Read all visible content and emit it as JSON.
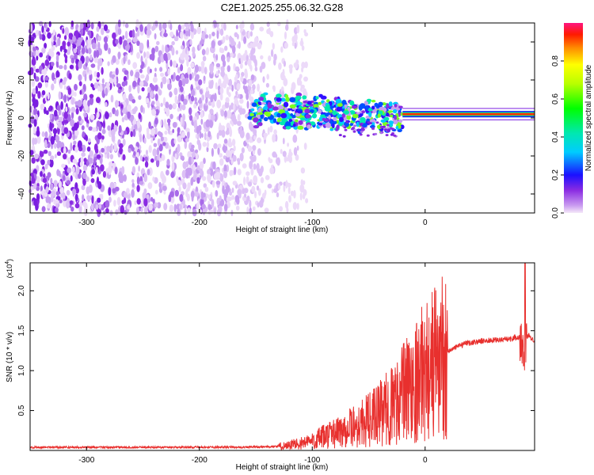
{
  "figure": {
    "title": "C2E1.2025.255.06.32.G28"
  },
  "chart_data": [
    {
      "type": "heatmap",
      "title": "C2E1.2025.255.06.32.G28",
      "xlabel": "Height of straight line (km)",
      "ylabel": "Frequency (Hz)",
      "xlim": [
        -350,
        97
      ],
      "ylim": [
        -50,
        50
      ],
      "x_ticks": [
        -300,
        -200,
        -100,
        0
      ],
      "y_ticks": [
        -40,
        -20,
        0,
        20,
        40
      ],
      "colorbar": {
        "label": "Normalized spectral amplitude",
        "range": [
          0,
          1
        ],
        "ticks": [
          "0.0",
          "0.2",
          "0.4",
          "0.6",
          "0.8"
        ]
      },
      "features": {
        "noise_region_x": [
          -350,
          -115
        ],
        "signal_band_start_x": -155,
        "tone_start_x": -20,
        "tone_frequency_hz": 2
      }
    },
    {
      "type": "line",
      "xlabel": "Height of straight line (km)",
      "ylabel": "SNR (10 * v/v)",
      "scale_label": "(x10",
      "scale_exponent": "4",
      "xlim": [
        -350,
        97
      ],
      "ylim": [
        0,
        2.35
      ],
      "x_ticks": [
        -300,
        -200,
        -100,
        0
      ],
      "y_ticks": [
        "0.5",
        "1.0",
        "1.5",
        "2.0"
      ],
      "series": [
        {
          "color": "#e8302e",
          "x": [
            -350,
            -250,
            -200,
            -160,
            -130,
            -110,
            -100,
            -90,
            -80,
            -70,
            -60,
            -50,
            -40,
            -30,
            -20,
            -10,
            0,
            10,
            20,
            30,
            40,
            50,
            60,
            70,
            80,
            85,
            88,
            90,
            92,
            95,
            97
          ],
          "y": [
            0.04,
            0.04,
            0.04,
            0.04,
            0.05,
            0.09,
            0.12,
            0.17,
            0.22,
            0.27,
            0.31,
            0.38,
            0.46,
            0.56,
            0.72,
            0.86,
            1.0,
            1.12,
            1.24,
            1.31,
            1.35,
            1.37,
            1.38,
            1.39,
            1.41,
            1.42,
            1.25,
            1.4,
            1.45,
            1.4,
            1.38
          ]
        }
      ]
    }
  ]
}
